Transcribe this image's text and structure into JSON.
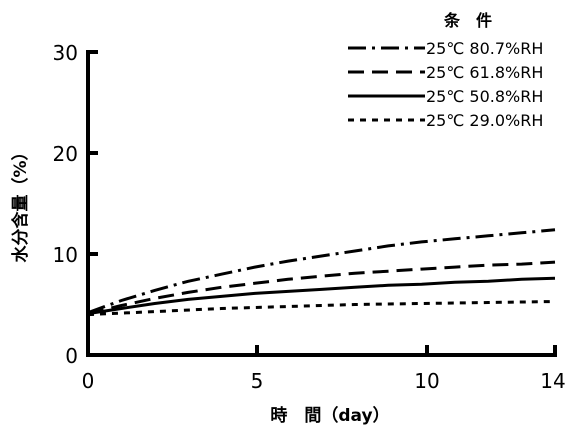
{
  "chart_data": {
    "type": "line",
    "xlabel": "時　間（day）",
    "ylabel": "水分含量（%）",
    "xlim": [
      0,
      14
    ],
    "ylim": [
      0,
      30
    ],
    "x_ticks": [
      "0",
      "5",
      "10",
      "14"
    ],
    "y_ticks": [
      "0",
      "10",
      "20",
      "30"
    ],
    "grid": false,
    "legend": {
      "title": "条　件",
      "position": "top-right"
    },
    "series": [
      {
        "name": "25℃ 80.7%RH",
        "line_style": "dash-dot",
        "x": [
          0,
          1,
          2,
          3,
          4,
          5,
          6,
          7,
          8,
          9,
          10,
          11,
          12,
          13,
          14
        ],
        "y": [
          4.2,
          5.4,
          6.4,
          7.3,
          8.0,
          8.7,
          9.3,
          9.8,
          10.3,
          10.8,
          11.2,
          11.5,
          11.8,
          12.1,
          12.4
        ]
      },
      {
        "name": "25℃ 61.8%RH",
        "line_style": "dashed",
        "x": [
          0,
          1,
          2,
          3,
          4,
          5,
          6,
          7,
          8,
          9,
          10,
          11,
          12,
          13,
          14
        ],
        "y": [
          4.1,
          4.9,
          5.6,
          6.2,
          6.7,
          7.1,
          7.5,
          7.8,
          8.1,
          8.3,
          8.5,
          8.7,
          8.9,
          9.0,
          9.2
        ]
      },
      {
        "name": "25℃ 50.8%RH",
        "line_style": "solid",
        "x": [
          0,
          1,
          2,
          3,
          4,
          5,
          6,
          7,
          8,
          9,
          10,
          11,
          12,
          13,
          14
        ],
        "y": [
          4.1,
          4.6,
          5.1,
          5.5,
          5.8,
          6.1,
          6.3,
          6.5,
          6.7,
          6.9,
          7.0,
          7.2,
          7.3,
          7.5,
          7.6
        ]
      },
      {
        "name": "25℃ 29.0%RH",
        "line_style": "dotted",
        "x": [
          0,
          2,
          4,
          6,
          8,
          10,
          12,
          14
        ],
        "y": [
          4.0,
          4.3,
          4.6,
          4.8,
          5.0,
          5.1,
          5.2,
          5.3
        ]
      }
    ]
  }
}
